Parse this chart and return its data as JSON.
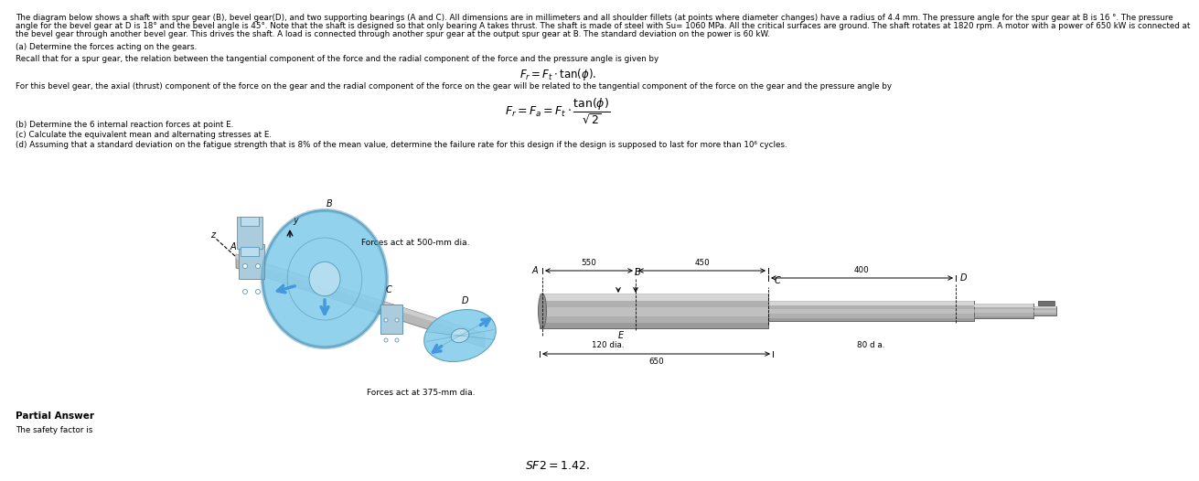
{
  "title_line1": "The diagram below shows a shaft with spur gear (B), bevel gear(D), and two supporting bearings (A and C). All dimensions are in millimeters and all shoulder fillets (at points where diameter changes) have a radius of 4.4 mm. The pressure angle for the spur gear at B is 16 °. The pressure",
  "title_line2": "angle for the bevel gear at D is 18° and the bevel angle is 45°. Note that the shaft is designed so that only bearing A takes thrust. The shaft is made of steel with Su= 1060 MPa. All the critical surfaces are ground. The shaft rotates at 1820 rpm. A motor with a power of 650 kW is connected at",
  "title_line3": "the bevel gear through another bevel gear. This drives the shaft. A load is connected through another spur gear at the output spur gear at B. The standard deviation on the power is 60 kW.",
  "part_a": "(a) Determine the forces acting on the gears.",
  "recall_text": "Recall that for a spur gear, the relation between the tangential component of the force and the radial component of the force and the pressure angle is given by",
  "spur_formula": "$F_r = F_t \\cdot \\tan(\\phi)$.",
  "bevel_intro": "For this bevel gear, the axial (thrust) component of the force on the gear and the radial component of the force on the gear will be related to the tangential component of the force on the gear and the pressure angle by",
  "bevel_formula_left": "$F_r = F_a = F_t \\cdot$",
  "bevel_formula_frac_num": "$\\tan(\\phi)$",
  "bevel_formula_frac_den": "$\\sqrt{2}$",
  "part_b": "(b) Determine the 6 internal reaction forces at point E.",
  "part_c": "(c) Calculate the equivalent mean and alternating stresses at E.",
  "part_d": "(d) Assuming that a standard deviation on the fatigue strength that is 8% of the mean value, determine the failure rate for this design if the design is supposed to last for more than 10⁶ cycles.",
  "partial_answer": "Partial Answer",
  "safety_factor_text": "The safety factor is",
  "sf_value": "$SF2= 1.42$.",
  "forces_500": "Forces act at 500-mm dia.",
  "forces_375": "Forces act at 375-mm dia.",
  "dim_550": "550",
  "dim_450": "450",
  "dim_400": "400",
  "dim_120dia": "120 dia.",
  "dim_650": "650",
  "dim_80dia": "80 d a.",
  "bg_color": "#ffffff",
  "text_color": "#000000",
  "shaft_gray": "#b8b8b8",
  "shaft_light": "#d8d8d8",
  "shaft_dark": "#888888",
  "gear_blue": "#87CEEB",
  "gear_blue_light": "#b8e0f0",
  "gear_blue_dark": "#5599bb",
  "arrow_blue": "#4499dd",
  "bearing_blue": "#88bbdd"
}
